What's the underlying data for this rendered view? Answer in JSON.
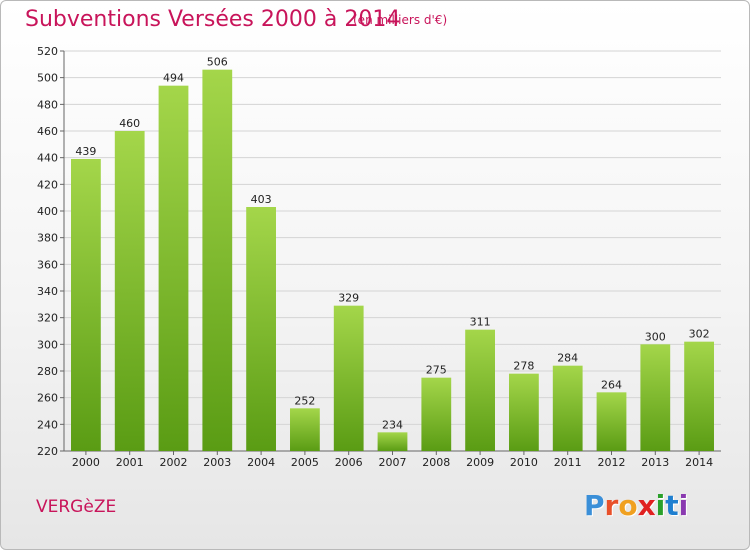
{
  "header": {
    "title": "Subventions Versées 2000 à 2014",
    "subtitle": "(en milliers d'€)"
  },
  "footer": {
    "commune": "VERGèZE",
    "logo_letters": [
      "P",
      "r",
      "o",
      "x",
      "i",
      "t",
      "i"
    ],
    "logo_colors": [
      "#3a8fd8",
      "#e8502a",
      "#f0a020",
      "#e02020",
      "#2aa02a",
      "#1f7fd0",
      "#8a3ab0"
    ]
  },
  "colors": {
    "accent": "#c8145a",
    "bar_top": "#a4d64a",
    "bar_bottom": "#5a9c14",
    "grid": "#d4d4d4"
  },
  "chart_data": {
    "type": "bar",
    "title": "Subventions Versées 2000 à 2014",
    "subtitle": "(en milliers d'€)",
    "categories": [
      "2000",
      "2001",
      "2002",
      "2003",
      "2004",
      "2005",
      "2006",
      "2007",
      "2008",
      "2009",
      "2010",
      "2011",
      "2012",
      "2013",
      "2014"
    ],
    "values": [
      439,
      460,
      494,
      506,
      403,
      252,
      329,
      234,
      275,
      311,
      278,
      284,
      264,
      300,
      302
    ],
    "ylim": [
      220,
      520
    ],
    "yticks": [
      220,
      240,
      260,
      280,
      300,
      320,
      340,
      360,
      380,
      400,
      420,
      440,
      460,
      480,
      500,
      520
    ],
    "grid": true,
    "data_labels": true
  }
}
